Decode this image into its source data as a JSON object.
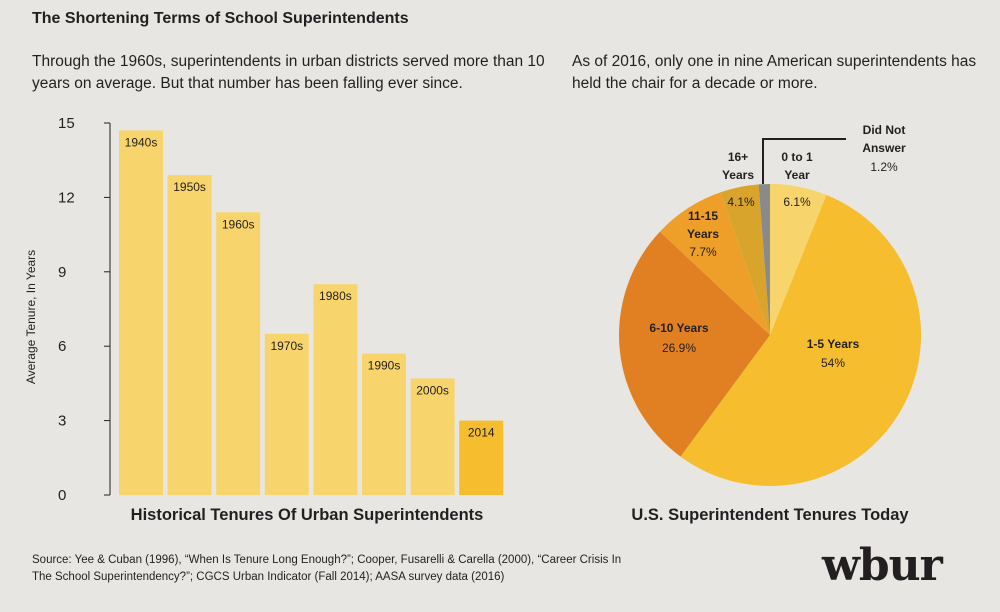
{
  "title": "The Shortening Terms of School Superintendents",
  "left_subtitle": "Through the 1960s, superintendents in urban districts served more than 10 years on average. But that number has been falling ever since.",
  "right_subtitle": "As of 2016, only one in nine American superintendents has held the chair for a decade or more.",
  "source": "Source: Yee & Cuban (1996), “When Is Tenure Long Enough?”; Cooper, Fusarelli & Carella (2000), “Career Crisis In The School Superintendency?”; CGCS Urban Indicator (Fall 2014); AASA survey data (2016)",
  "logo": "wbur",
  "colors": {
    "bar": "#f8d56c",
    "bar_highlight": "#f6be2e",
    "axis": "#231f20",
    "background": "#e8e6e3"
  },
  "chart_data": [
    {
      "type": "bar",
      "title": "Historical Tenures Of Urban Superintendents",
      "ylabel": "Average Tenure, In Years",
      "xlabel": "",
      "ylim": [
        0,
        15
      ],
      "yticks": [
        0,
        3,
        6,
        9,
        12,
        15
      ],
      "categories": [
        "1940s",
        "1950s",
        "1960s",
        "1970s",
        "1980s",
        "1990s",
        "2000s",
        "2014"
      ],
      "values": [
        14.7,
        12.9,
        11.4,
        6.5,
        8.5,
        5.7,
        4.7,
        3.0
      ],
      "highlight": "2014",
      "grid": false
    },
    {
      "type": "pie",
      "title": "U.S. Superintendent Tenures Today",
      "slices": [
        {
          "label": "0 to 1 Year",
          "value": 6.1,
          "value_label": "6.1%",
          "color": "#f8d56c"
        },
        {
          "label": "1-5 Years",
          "value": 54,
          "value_label": "54%",
          "color": "#f6be2e"
        },
        {
          "label": "6-10 Years",
          "value": 26.9,
          "value_label": "26.9%",
          "color": "#e18022"
        },
        {
          "label": "11-15 Years",
          "value": 7.7,
          "value_label": "7.7%",
          "color": "#ee9f2a"
        },
        {
          "label": "16+ Years",
          "value": 4.1,
          "value_label": "4.1%",
          "color": "#d9a42c"
        },
        {
          "label": "Did Not Answer",
          "value": 1.2,
          "value_label": "1.2%",
          "color": "#8a8a8a"
        }
      ]
    }
  ]
}
